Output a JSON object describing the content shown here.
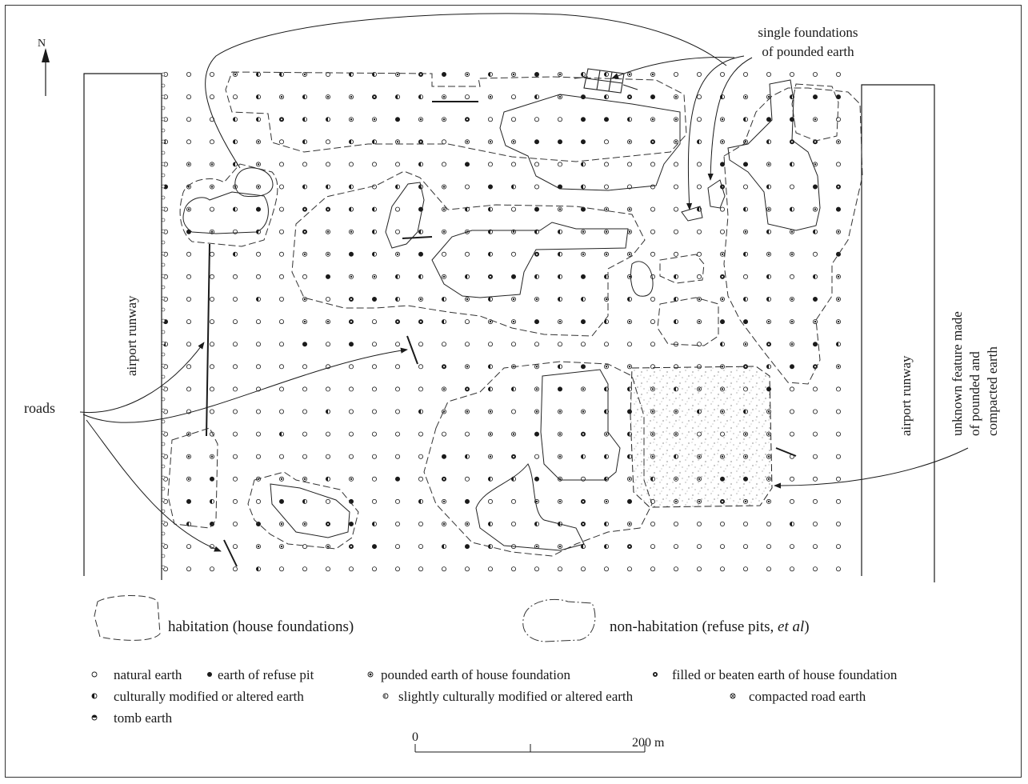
{
  "north_label": "N",
  "runway_label_left": "airport runway",
  "runway_label_right": "airport runway",
  "roads_label": "roads",
  "single_foundations_label": [
    "single foundations",
    "of pounded earth"
  ],
  "unknown_feature_label": [
    "unknown feature made",
    "of pounded and",
    "compacted earth"
  ],
  "zone_legend": {
    "habitation": "habitation (house foundations)",
    "non_habitation_prefix": "non-habitation (refuse pits,",
    "non_habitation_etal": "et al",
    "non_habitation_suffix": ")"
  },
  "legend": {
    "natural": "natural earth",
    "refuse": "earth of refuse pit",
    "pounded": "pounded earth of house foundation",
    "filled": "filled or beaten earth of house foundation",
    "cultural": "culturally modified or altered earth",
    "slight": "slightly culturally modified or altered earth",
    "road": "compacted road earth",
    "tomb": "tomb earth"
  },
  "scale": {
    "zero": "0",
    "end": "200 m"
  },
  "colors": {
    "ink": "#1a1a1a",
    "frame": "#333333"
  }
}
